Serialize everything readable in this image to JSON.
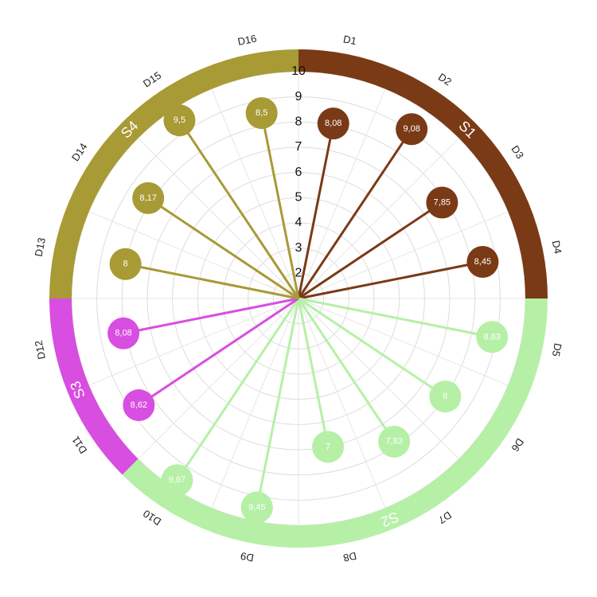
{
  "chart_data": {
    "type": "polar-lollipop",
    "categories": [
      "D1",
      "D2",
      "D3",
      "D4",
      "D5",
      "D6",
      "D7",
      "D8",
      "D9",
      "D10",
      "D11",
      "D12",
      "D13",
      "D14",
      "D15",
      "D16"
    ],
    "series": [
      {
        "name": "S1",
        "color": "#7a3a16",
        "values": [
          8.08,
          9.08,
          7.85,
          8.45,
          null,
          null,
          null,
          null,
          null,
          null,
          null,
          null,
          null,
          null,
          null,
          null
        ],
        "value_labels": [
          "8,08",
          "9,08",
          "7,85",
          "8,45",
          null,
          null,
          null,
          null,
          null,
          null,
          null,
          null,
          null,
          null,
          null,
          null
        ]
      },
      {
        "name": "S2",
        "color": "#b5f0a6",
        "values": [
          null,
          null,
          null,
          null,
          8.83,
          8,
          7.83,
          7,
          9.45,
          9.67,
          null,
          null,
          null,
          null,
          null,
          null
        ],
        "value_labels": [
          null,
          null,
          null,
          null,
          "8,83",
          "8",
          "7,83",
          "7",
          "9,45",
          "9,67",
          null,
          null,
          null,
          null,
          null,
          null
        ]
      },
      {
        "name": "S3",
        "color": "#d84ee0",
        "values": [
          null,
          null,
          null,
          null,
          null,
          null,
          null,
          null,
          null,
          null,
          8.62,
          8.08,
          null,
          null,
          null,
          null
        ],
        "value_labels": [
          null,
          null,
          null,
          null,
          null,
          null,
          null,
          null,
          null,
          null,
          "8,62",
          "8,08",
          null,
          null,
          null,
          null
        ]
      },
      {
        "name": "S4",
        "color": "#a89a35",
        "values": [
          null,
          null,
          null,
          null,
          null,
          null,
          null,
          null,
          null,
          null,
          null,
          null,
          8,
          8.17,
          9.5,
          8.5
        ],
        "value_labels": [
          null,
          null,
          null,
          null,
          null,
          null,
          null,
          null,
          null,
          null,
          null,
          null,
          "8",
          "8,17",
          "9,5",
          "8,5"
        ]
      }
    ],
    "ylim": [
      1,
      10
    ],
    "yticks": [
      2,
      3,
      4,
      5,
      6,
      7,
      8,
      9,
      10
    ],
    "grid": true
  }
}
